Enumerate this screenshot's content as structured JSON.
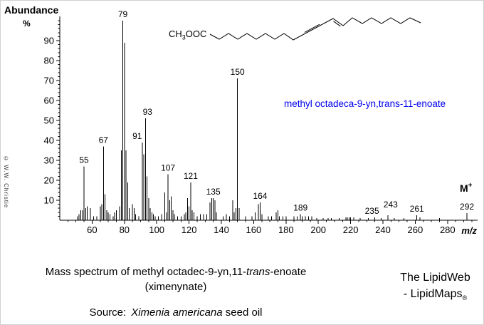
{
  "chart_labels": {
    "y_axis_title": "Abundance",
    "y_axis_unit": "%",
    "x_axis_label": "m/z"
  },
  "copyright": "© W.W. Christie",
  "molecule": {
    "formula_prefix": "CH",
    "formula_sub": "3",
    "formula_suffix": "OOC",
    "name": "methyl octadeca-9-yn,trans-11-enoate",
    "name_color": "#0000ee"
  },
  "chart_data": {
    "type": "bar",
    "title": "Mass spectrum of methyl octadec-9-yn,11-trans-enoate (ximenynate)",
    "xlabel": "m/z",
    "ylabel": "Abundance %",
    "xlim": [
      40,
      297
    ],
    "ylim": [
      0,
      100
    ],
    "grid": false,
    "x_major_ticks": [
      60,
      80,
      100,
      120,
      140,
      160,
      180,
      200,
      220,
      240,
      260,
      280
    ],
    "x_minor_tick_step": 5,
    "y_major_ticks": [
      10,
      20,
      30,
      40,
      50,
      60,
      70,
      80,
      90
    ],
    "y_minor_tick_step": 2,
    "peaks": [
      [
        51,
        2
      ],
      [
        52,
        3
      ],
      [
        53,
        5
      ],
      [
        54,
        5
      ],
      [
        55,
        27
      ],
      [
        56,
        6
      ],
      [
        57,
        7
      ],
      [
        59,
        6
      ],
      [
        61,
        2
      ],
      [
        63,
        2
      ],
      [
        65,
        7
      ],
      [
        66,
        8
      ],
      [
        67,
        37
      ],
      [
        68,
        13
      ],
      [
        69,
        5
      ],
      [
        70,
        4
      ],
      [
        71,
        3
      ],
      [
        73,
        2
      ],
      [
        74,
        4
      ],
      [
        75,
        5
      ],
      [
        77,
        7
      ],
      [
        78,
        35
      ],
      [
        79,
        100
      ],
      [
        80,
        89
      ],
      [
        81,
        35
      ],
      [
        82,
        19
      ],
      [
        83,
        6
      ],
      [
        85,
        8
      ],
      [
        86,
        6
      ],
      [
        87,
        3
      ],
      [
        89,
        2
      ],
      [
        91,
        39
      ],
      [
        92,
        33
      ],
      [
        93,
        51
      ],
      [
        94,
        22
      ],
      [
        95,
        11
      ],
      [
        96,
        6
      ],
      [
        97,
        4
      ],
      [
        98,
        3
      ],
      [
        99,
        2
      ],
      [
        101,
        2
      ],
      [
        103,
        3
      ],
      [
        105,
        14
      ],
      [
        106,
        4
      ],
      [
        107,
        23
      ],
      [
        108,
        10
      ],
      [
        109,
        12
      ],
      [
        110,
        5
      ],
      [
        111,
        3
      ],
      [
        113,
        2
      ],
      [
        115,
        2
      ],
      [
        117,
        3
      ],
      [
        118,
        4
      ],
      [
        119,
        11
      ],
      [
        120,
        7
      ],
      [
        121,
        19
      ],
      [
        122,
        5
      ],
      [
        123,
        4
      ],
      [
        125,
        2
      ],
      [
        127,
        3
      ],
      [
        129,
        3
      ],
      [
        131,
        3
      ],
      [
        133,
        9
      ],
      [
        134,
        11
      ],
      [
        135,
        11
      ],
      [
        136,
        10
      ],
      [
        137,
        4
      ],
      [
        141,
        2
      ],
      [
        143,
        3
      ],
      [
        145,
        2
      ],
      [
        147,
        10
      ],
      [
        148,
        4
      ],
      [
        149,
        6
      ],
      [
        150,
        71
      ],
      [
        151,
        6
      ],
      [
        155,
        2
      ],
      [
        159,
        2
      ],
      [
        161,
        4
      ],
      [
        163,
        8
      ],
      [
        164,
        9
      ],
      [
        165,
        3
      ],
      [
        169,
        2
      ],
      [
        171,
        2
      ],
      [
        174,
        4
      ],
      [
        175,
        5
      ],
      [
        176,
        2
      ],
      [
        178,
        2
      ],
      [
        180,
        2
      ],
      [
        185,
        2
      ],
      [
        187,
        2
      ],
      [
        189,
        3
      ],
      [
        190,
        2
      ],
      [
        192,
        2
      ],
      [
        194,
        2
      ],
      [
        196,
        2
      ],
      [
        199,
        1
      ],
      [
        203,
        1
      ],
      [
        206,
        1
      ],
      [
        208,
        1
      ],
      [
        213,
        1
      ],
      [
        217,
        1.5
      ],
      [
        218,
        1.5
      ],
      [
        219,
        1.5
      ],
      [
        220,
        1.5
      ],
      [
        222,
        1.5
      ],
      [
        226,
        1
      ],
      [
        231,
        1
      ],
      [
        235,
        1.5
      ],
      [
        239,
        1
      ],
      [
        243,
        2.5
      ],
      [
        247,
        1
      ],
      [
        253,
        1
      ],
      [
        261,
        2.5
      ],
      [
        263,
        1.5
      ],
      [
        275,
        1
      ],
      [
        292,
        3.5
      ]
    ],
    "labeled_peaks": [
      {
        "mz": 55,
        "intensity": 27,
        "label": "55"
      },
      {
        "mz": 67,
        "intensity": 37,
        "label": "67"
      },
      {
        "mz": 79,
        "intensity": 100,
        "label": "79"
      },
      {
        "mz": 91,
        "intensity": 39,
        "label": "91",
        "dx": -7
      },
      {
        "mz": 93,
        "intensity": 51,
        "label": "93",
        "dx": 3
      },
      {
        "mz": 107,
        "intensity": 23,
        "label": "107"
      },
      {
        "mz": 121,
        "intensity": 19,
        "label": "121"
      },
      {
        "mz": 135,
        "intensity": 11,
        "label": "135"
      },
      {
        "mz": 150,
        "intensity": 71,
        "label": "150"
      },
      {
        "mz": 164,
        "intensity": 9,
        "label": "164"
      },
      {
        "mz": 189,
        "intensity": 3,
        "label": "189"
      },
      {
        "mz": 235,
        "intensity": 1.5,
        "label": "235",
        "dx": -4
      },
      {
        "mz": 243,
        "intensity": 2.5,
        "label": "243",
        "dx": 4,
        "dy": -6
      },
      {
        "mz": 261,
        "intensity": 2.5,
        "label": "261"
      },
      {
        "mz": 292,
        "intensity": 3.5,
        "label": "292"
      }
    ],
    "molecular_ion": {
      "label": "M",
      "sup": "+",
      "mz": 292
    }
  },
  "captions": {
    "line1_part1": "Mass spectrum of methyl octadec-9-yn,11-",
    "line1_italic": "trans",
    "line1_part3": "-enoate",
    "line2": "(ximenynate)",
    "source_label": "Source:",
    "source_italic": "Ximenia americana",
    "source_suffix": " seed oil"
  },
  "branding": {
    "line1": "The LipidWeb",
    "line2_prefix": "- LipidMaps",
    "reg": "®"
  }
}
